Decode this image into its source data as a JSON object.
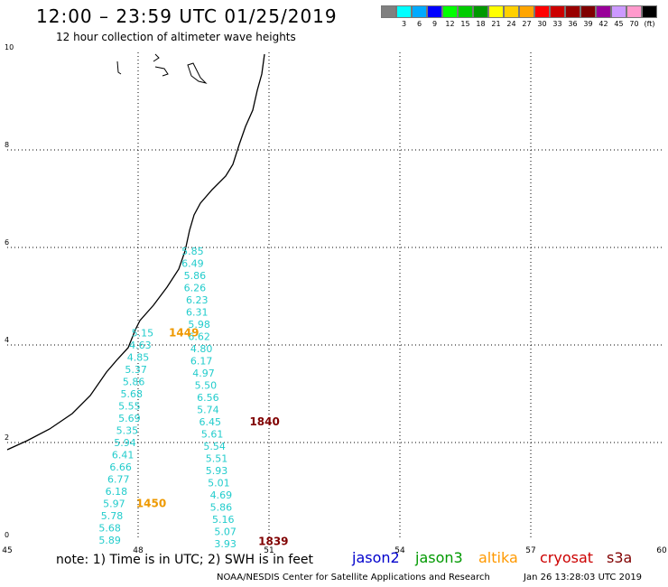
{
  "title": "12:00 – 23:59 UTC 01/25/2019",
  "subtitle": "12 hour collection of altimeter wave heights",
  "scale": {
    "unit": "(ft)",
    "bins": [
      {
        "label": "",
        "color": "#808080"
      },
      {
        "label": "3",
        "color": "#00ffff"
      },
      {
        "label": "6",
        "color": "#00aaff"
      },
      {
        "label": "9",
        "color": "#0000ff"
      },
      {
        "label": "12",
        "color": "#00ff00"
      },
      {
        "label": "15",
        "color": "#00cc00"
      },
      {
        "label": "18",
        "color": "#009900"
      },
      {
        "label": "21",
        "color": "#ffff00"
      },
      {
        "label": "24",
        "color": "#ffd000"
      },
      {
        "label": "27",
        "color": "#ffa500"
      },
      {
        "label": "30",
        "color": "#ff0000"
      },
      {
        "label": "33",
        "color": "#cc0000"
      },
      {
        "label": "36",
        "color": "#990000"
      },
      {
        "label": "39",
        "color": "#800000"
      },
      {
        "label": "42",
        "color": "#990099"
      },
      {
        "label": "45",
        "color": "#cc99ff"
      },
      {
        "label": "70",
        "color": "#ff99cc"
      },
      {
        "label": "",
        "color": "#000000"
      }
    ]
  },
  "axes": {
    "x_ticks": [
      "45",
      "48",
      "51",
      "54",
      "57",
      "60"
    ],
    "y_ticks": [
      "0",
      "2",
      "4",
      "6",
      "8",
      "10"
    ],
    "xlim": [
      45,
      60
    ],
    "ylim": [
      0,
      10
    ]
  },
  "track_a": {
    "color": "#22cccc",
    "points": [
      {
        "lon": 49.25,
        "lat": 5.85,
        "text": "5.85"
      },
      {
        "lon": 49.25,
        "lat": 5.6,
        "text": "6.49"
      },
      {
        "lon": 49.3,
        "lat": 5.35,
        "text": "5.86"
      },
      {
        "lon": 49.3,
        "lat": 5.1,
        "text": "6.26"
      },
      {
        "lon": 49.35,
        "lat": 4.85,
        "text": "6.23"
      },
      {
        "lon": 49.35,
        "lat": 4.6,
        "text": "6.31"
      },
      {
        "lon": 49.4,
        "lat": 4.35,
        "text": "5.98"
      },
      {
        "lon": 49.4,
        "lat": 4.1,
        "text": "6.62"
      },
      {
        "lon": 49.45,
        "lat": 3.85,
        "text": "4.80"
      },
      {
        "lon": 49.45,
        "lat": 3.6,
        "text": "6.17"
      },
      {
        "lon": 49.5,
        "lat": 3.35,
        "text": "4.97"
      },
      {
        "lon": 49.55,
        "lat": 3.1,
        "text": "5.50"
      },
      {
        "lon": 49.6,
        "lat": 2.85,
        "text": "6.56"
      },
      {
        "lon": 49.6,
        "lat": 2.6,
        "text": "5.74"
      },
      {
        "lon": 49.65,
        "lat": 2.35,
        "text": "6.45"
      },
      {
        "lon": 49.7,
        "lat": 2.1,
        "text": "5.61"
      },
      {
        "lon": 49.75,
        "lat": 1.85,
        "text": "5.54"
      },
      {
        "lon": 49.8,
        "lat": 1.6,
        "text": "5.51"
      },
      {
        "lon": 49.8,
        "lat": 1.35,
        "text": "5.93"
      },
      {
        "lon": 49.85,
        "lat": 1.1,
        "text": "5.01"
      },
      {
        "lon": 49.9,
        "lat": 0.85,
        "text": "4.69"
      },
      {
        "lon": 49.9,
        "lat": 0.6,
        "text": "5.86"
      },
      {
        "lon": 49.95,
        "lat": 0.35,
        "text": "5.16"
      },
      {
        "lon": 50.0,
        "lat": 0.1,
        "text": "5.07"
      },
      {
        "lon": 50.0,
        "lat": -0.15,
        "text": "3.93"
      }
    ]
  },
  "track_b": {
    "color": "#22cccc",
    "points": [
      {
        "lon": 48.1,
        "lat": 4.18,
        "text": "5.15"
      },
      {
        "lon": 48.05,
        "lat": 3.93,
        "text": "4.63"
      },
      {
        "lon": 48.0,
        "lat": 3.68,
        "text": "4.85"
      },
      {
        "lon": 47.95,
        "lat": 3.43,
        "text": "5.37"
      },
      {
        "lon": 47.9,
        "lat": 3.18,
        "text": "5.86"
      },
      {
        "lon": 47.85,
        "lat": 2.93,
        "text": "5.68"
      },
      {
        "lon": 47.8,
        "lat": 2.68,
        "text": "5.55"
      },
      {
        "lon": 47.8,
        "lat": 2.43,
        "text": "5.69"
      },
      {
        "lon": 47.75,
        "lat": 2.18,
        "text": "5.35"
      },
      {
        "lon": 47.7,
        "lat": 1.93,
        "text": "5.94"
      },
      {
        "lon": 47.65,
        "lat": 1.68,
        "text": "6.41"
      },
      {
        "lon": 47.6,
        "lat": 1.43,
        "text": "6.66"
      },
      {
        "lon": 47.55,
        "lat": 1.18,
        "text": "6.77"
      },
      {
        "lon": 47.5,
        "lat": 0.93,
        "text": "6.18"
      },
      {
        "lon": 47.45,
        "lat": 0.68,
        "text": "5.97"
      },
      {
        "lon": 47.4,
        "lat": 0.43,
        "text": "5.78"
      },
      {
        "lon": 47.35,
        "lat": 0.18,
        "text": "5.68"
      },
      {
        "lon": 47.35,
        "lat": -0.07,
        "text": "5.89"
      }
    ]
  },
  "time_labels": [
    {
      "lon": 49.05,
      "lat": 4.18,
      "text": "1449",
      "color": "#ee9900"
    },
    {
      "lon": 48.3,
      "lat": 0.68,
      "text": "1450",
      "color": "#ee9900"
    },
    {
      "lon": 50.9,
      "lat": 2.35,
      "text": "1840",
      "color": "#800000"
    },
    {
      "lon": 51.1,
      "lat": -0.1,
      "text": "1839",
      "color": "#800000"
    }
  ],
  "footer": {
    "note": "note:  1) Time is in UTC;  2) SWH is in feet",
    "credit": "NOAA/NESDIS Center for Satellite Applications and Research",
    "timestamp": "Jan 26 13:28:03 UTC 2019"
  },
  "legend": [
    {
      "name": "jason2",
      "color": "#0000cc"
    },
    {
      "name": "jason3",
      "color": "#009900"
    },
    {
      "name": "altika",
      "color": "#ff9900"
    },
    {
      "name": "cryosat",
      "color": "#cc0000"
    },
    {
      "name": "s3a",
      "color": "#800000"
    }
  ]
}
